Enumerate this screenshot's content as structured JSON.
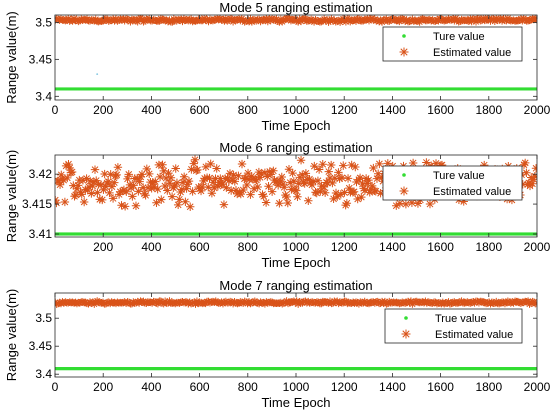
{
  "chart_data": [
    {
      "type": "scatter",
      "title": "Mode 5 ranging estimation",
      "xlabel": "Time Epoch",
      "ylabel": "Range value(m)",
      "xlim": [
        0,
        2000
      ],
      "ylim": [
        3.395,
        3.51
      ],
      "xticks": [
        "0",
        "200",
        "400",
        "600",
        "800",
        "1000",
        "1200",
        "1400",
        "1600",
        "1800",
        "2000"
      ],
      "yticks": [
        "3.4",
        "3.45",
        "3.5"
      ],
      "ytick_values": [
        3.4,
        3.45,
        3.5
      ],
      "legend": {
        "placement": "top-right",
        "entries": [
          "Ture value",
          "Estimated value"
        ]
      },
      "series": [
        {
          "name": "Ture value",
          "color": "#33dd33",
          "marker": "dot",
          "value": 3.41,
          "x_range": [
            1,
            2000
          ]
        },
        {
          "name": "Estimated value",
          "color": "#d95319",
          "marker": "asterisk",
          "center": 3.503,
          "spread": 0.003,
          "x_range": [
            1,
            2000
          ],
          "outliers": [
            [
              175,
              3.43
            ]
          ]
        }
      ],
      "grid": false
    },
    {
      "type": "scatter",
      "title": "Mode 6 ranging estimation",
      "xlabel": "Time Epoch",
      "ylabel": "Range value(m)",
      "xlim": [
        0,
        2000
      ],
      "ylim": [
        3.4095,
        3.4232
      ],
      "xticks": [
        "200",
        "400",
        "600",
        "800",
        "1000",
        "1200",
        "1400",
        "1600",
        "1800",
        "2000"
      ],
      "yticks": [
        "3.41",
        "3.415",
        "3.42"
      ],
      "ytick_values": [
        3.41,
        3.415,
        3.42
      ],
      "legend": {
        "placement": "top-right",
        "entries": [
          "Ture value",
          "Estimated value"
        ]
      },
      "series": [
        {
          "name": "Ture value",
          "color": "#33dd33",
          "marker": "dot",
          "value": 3.41,
          "x_range": [
            1,
            2000
          ]
        },
        {
          "name": "Estimated value",
          "color": "#d95319",
          "marker": "asterisk",
          "center": 3.4185,
          "spread": 0.0042,
          "x_range": [
            1,
            2000
          ]
        }
      ],
      "grid": false
    },
    {
      "type": "scatter",
      "title": "Mode 7 ranging estimation",
      "xlabel": "Time Epoch",
      "ylabel": "Range value(m)",
      "xlim": [
        0,
        2000
      ],
      "ylim": [
        3.395,
        3.545
      ],
      "xticks": [
        "0",
        "200",
        "400",
        "600",
        "800",
        "1000",
        "1200",
        "1400",
        "1600",
        "1800",
        "2000"
      ],
      "yticks": [
        "3.4",
        "3.45",
        "3.5"
      ],
      "ytick_values": [
        3.4,
        3.45,
        3.5
      ],
      "legend": {
        "placement": "right",
        "entries": [
          "True value",
          "Estimated value"
        ]
      },
      "series": [
        {
          "name": "True value",
          "color": "#33dd33",
          "marker": "dot",
          "value": 3.41,
          "x_range": [
            1,
            2000
          ]
        },
        {
          "name": "Estimated value",
          "color": "#d95319",
          "marker": "asterisk",
          "center": 3.528,
          "spread": 0.003,
          "x_range": [
            1,
            2000
          ]
        }
      ],
      "grid": false
    }
  ]
}
